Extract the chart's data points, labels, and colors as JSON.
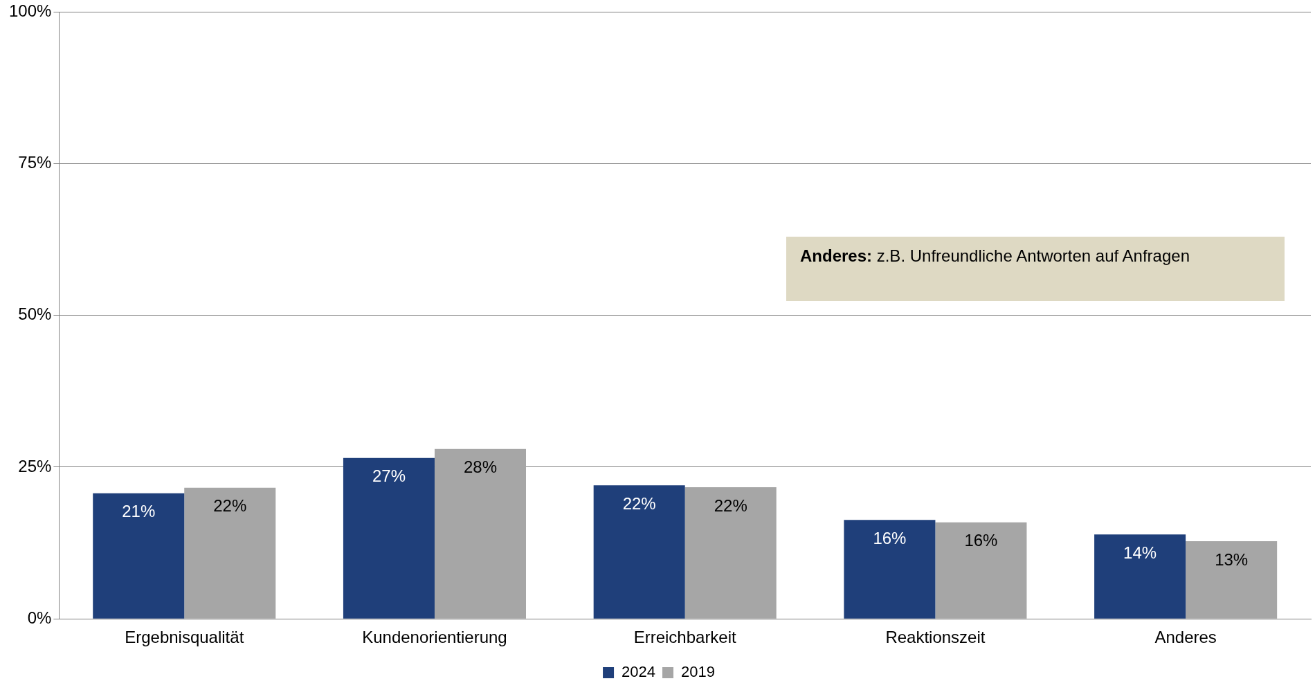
{
  "chart_data": {
    "type": "bar",
    "categories": [
      "Ergebnisqualität",
      "Kundenorientierung",
      "Erreichbarkeit",
      "Reaktionszeit",
      "Anderes"
    ],
    "series": [
      {
        "name": "2024",
        "color": "#1f3f7a",
        "values": [
          20.7,
          26.5,
          22.0,
          16.3,
          13.9
        ],
        "value_labels": [
          "21%",
          "27%",
          "22%",
          "16%",
          "14%"
        ]
      },
      {
        "name": "2019",
        "color": "#a6a6a6",
        "values": [
          21.6,
          28.0,
          21.7,
          15.9,
          12.8
        ],
        "value_labels": [
          "22%",
          "28%",
          "22%",
          "16%",
          "13%"
        ]
      }
    ],
    "ylim": [
      0,
      100
    ],
    "yticks": [
      {
        "value": 0,
        "label": "0%"
      },
      {
        "value": 25,
        "label": "25%"
      },
      {
        "value": 50,
        "label": "50%"
      },
      {
        "value": 75,
        "label": "75%"
      },
      {
        "value": 100,
        "label": "100%"
      }
    ],
    "grid": "y",
    "legend": "bottom",
    "annotations": [
      "Anderes: z.B. Unfreundliche Antworten auf Anfragen"
    ]
  }
}
